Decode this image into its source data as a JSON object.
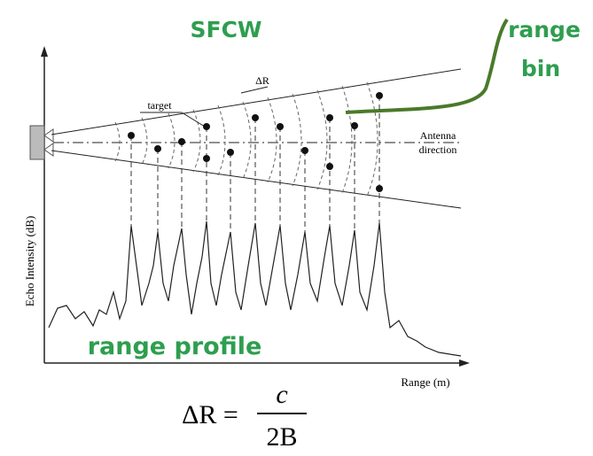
{
  "title": "SFCW",
  "range_bin": [
    "range",
    "bin"
  ],
  "labels": {
    "target": "target",
    "delta_r": "ΔR",
    "antenna_direction": [
      "Antenna",
      "direction"
    ],
    "y_axis": "Echo Intensity (dB)",
    "x_axis": "Range (m)",
    "range_profile": "range profile"
  },
  "formula": {
    "left": "ΔR =",
    "numerator": "c",
    "denominator": "2B"
  }
}
